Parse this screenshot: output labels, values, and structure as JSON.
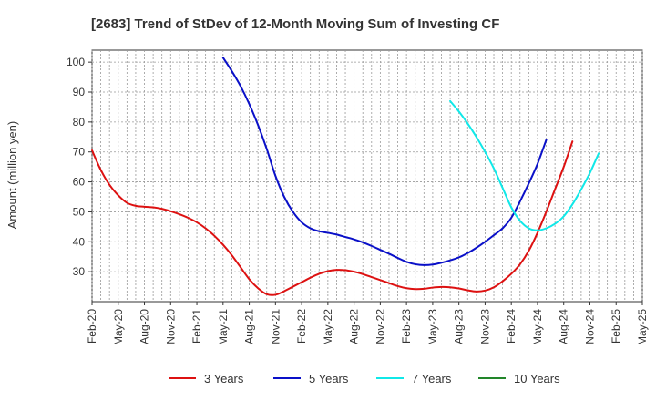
{
  "chart_data": {
    "type": "line",
    "title": "[2683]  Trend of StDev of 12-Month Moving Sum of Investing CF",
    "ylabel": "Amount (million yen)",
    "xlabel": "",
    "ylim": [
      20,
      104
    ],
    "yticks": [
      30,
      40,
      50,
      60,
      70,
      80,
      90,
      100
    ],
    "x_ticks": [
      "Feb-20",
      "May-20",
      "Aug-20",
      "Nov-20",
      "Feb-21",
      "May-21",
      "Aug-21",
      "Nov-21",
      "Feb-22",
      "May-22",
      "Aug-22",
      "Nov-22",
      "Feb-23",
      "May-23",
      "Aug-23",
      "Nov-23",
      "Feb-24",
      "May-24",
      "Aug-24",
      "Nov-24",
      "Feb-25",
      "May-25"
    ],
    "grid": true,
    "legend_position": "bottom",
    "series": [
      {
        "name": "3 Years",
        "color": "#dd1111",
        "points": [
          [
            "Feb-20",
            70.5
          ],
          [
            "Mar-20",
            64
          ],
          [
            "Apr-20",
            59
          ],
          [
            "May-20",
            55.5
          ],
          [
            "Jun-20",
            53
          ],
          [
            "Jul-20",
            52
          ],
          [
            "Aug-20",
            51.7
          ],
          [
            "Sep-20",
            51.5
          ],
          [
            "Oct-20",
            51
          ],
          [
            "Nov-20",
            50.2
          ],
          [
            "Dec-20",
            49.2
          ],
          [
            "Jan-21",
            48
          ],
          [
            "Feb-21",
            46.5
          ],
          [
            "Mar-21",
            44.5
          ],
          [
            "Apr-21",
            42
          ],
          [
            "May-21",
            39
          ],
          [
            "Jun-21",
            35.5
          ],
          [
            "Jul-21",
            31.5
          ],
          [
            "Aug-21",
            27.5
          ],
          [
            "Sep-21",
            24.5
          ],
          [
            "Oct-21",
            22.5
          ],
          [
            "Nov-21",
            22.3
          ],
          [
            "Dec-21",
            23.5
          ],
          [
            "Jan-22",
            25
          ],
          [
            "Feb-22",
            26.5
          ],
          [
            "Mar-22",
            28
          ],
          [
            "Apr-22",
            29.3
          ],
          [
            "May-22",
            30.2
          ],
          [
            "Jun-22",
            30.6
          ],
          [
            "Jul-22",
            30.5
          ],
          [
            "Aug-22",
            30
          ],
          [
            "Sep-22",
            29.2
          ],
          [
            "Oct-22",
            28.2
          ],
          [
            "Nov-22",
            27.2
          ],
          [
            "Dec-22",
            26.2
          ],
          [
            "Jan-23",
            25.2
          ],
          [
            "Feb-23",
            24.5
          ],
          [
            "Mar-23",
            24.2
          ],
          [
            "Apr-23",
            24.3
          ],
          [
            "May-23",
            24.7
          ],
          [
            "Jun-23",
            24.9
          ],
          [
            "Jul-23",
            24.8
          ],
          [
            "Aug-23",
            24.4
          ],
          [
            "Sep-23",
            23.8
          ],
          [
            "Oct-23",
            23.4
          ],
          [
            "Nov-23",
            23.7
          ],
          [
            "Dec-23",
            24.8
          ],
          [
            "Jan-24",
            26.8
          ],
          [
            "Feb-24",
            29.3
          ],
          [
            "Mar-24",
            32.5
          ],
          [
            "Apr-24",
            37
          ],
          [
            "May-24",
            43
          ],
          [
            "Jun-24",
            50
          ],
          [
            "Jul-24",
            57.5
          ],
          [
            "Aug-24",
            65
          ],
          [
            "Sep-24",
            73.5
          ]
        ]
      },
      {
        "name": "5 Years",
        "color": "#0a10c8",
        "points": [
          [
            "May-21",
            101.5
          ],
          [
            "Jun-21",
            97
          ],
          [
            "Jul-21",
            92
          ],
          [
            "Aug-21",
            86
          ],
          [
            "Sep-21",
            79
          ],
          [
            "Oct-21",
            71
          ],
          [
            "Nov-21",
            62
          ],
          [
            "Dec-21",
            55
          ],
          [
            "Jan-22",
            50
          ],
          [
            "Feb-22",
            46.5
          ],
          [
            "Mar-22",
            44.5
          ],
          [
            "Apr-22",
            43.5
          ],
          [
            "May-22",
            43
          ],
          [
            "Jun-22",
            42.4
          ],
          [
            "Jul-22",
            41.6
          ],
          [
            "Aug-22",
            40.8
          ],
          [
            "Sep-22",
            39.8
          ],
          [
            "Oct-22",
            38.6
          ],
          [
            "Nov-22",
            37.3
          ],
          [
            "Dec-22",
            36
          ],
          [
            "Jan-23",
            34.6
          ],
          [
            "Feb-23",
            33.3
          ],
          [
            "Mar-23",
            32.5
          ],
          [
            "Apr-23",
            32.2
          ],
          [
            "May-23",
            32.4
          ],
          [
            "Jun-23",
            33
          ],
          [
            "Jul-23",
            33.8
          ],
          [
            "Aug-23",
            34.8
          ],
          [
            "Sep-23",
            36.2
          ],
          [
            "Oct-23",
            38
          ],
          [
            "Nov-23",
            40
          ],
          [
            "Dec-23",
            42.2
          ],
          [
            "Jan-24",
            44.5
          ],
          [
            "Feb-24",
            48
          ],
          [
            "Mar-24",
            53.5
          ],
          [
            "Apr-24",
            59.5
          ],
          [
            "May-24",
            66
          ],
          [
            "Jun-24",
            74
          ]
        ]
      },
      {
        "name": "7 Years",
        "color": "#10e8e8",
        "points": [
          [
            "Jul-23",
            87
          ],
          [
            "Aug-23",
            83.5
          ],
          [
            "Sep-23",
            79.5
          ],
          [
            "Oct-23",
            75
          ],
          [
            "Nov-23",
            70
          ],
          [
            "Dec-23",
            64.5
          ],
          [
            "Jan-24",
            58
          ],
          [
            "Feb-24",
            51.5
          ],
          [
            "Mar-24",
            47
          ],
          [
            "Apr-24",
            44.5
          ],
          [
            "May-24",
            43.8
          ],
          [
            "Jun-24",
            44.5
          ],
          [
            "Jul-24",
            46
          ],
          [
            "Aug-24",
            48.5
          ],
          [
            "Sep-24",
            52.5
          ],
          [
            "Oct-24",
            57.5
          ],
          [
            "Nov-24",
            63
          ],
          [
            "Dec-24",
            69.5
          ]
        ]
      },
      {
        "name": "10 Years",
        "color": "#22862a",
        "points": []
      }
    ]
  }
}
